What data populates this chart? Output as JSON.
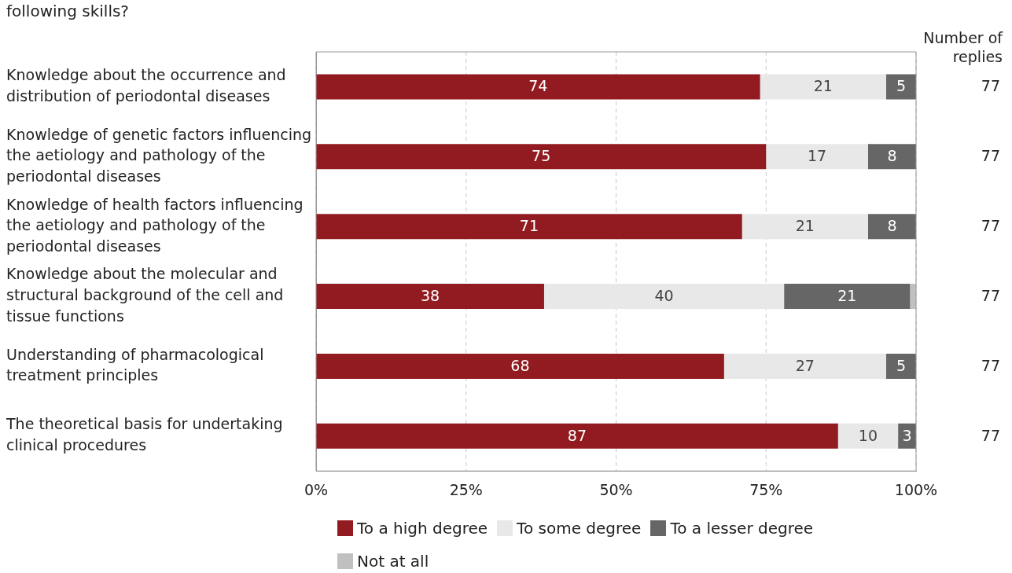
{
  "chart_data": {
    "type": "bar",
    "orientation": "horizontal",
    "stacked": true,
    "title": "following skills?",
    "categories": [
      "Knowledge about the occurrence and distribution of periodontal diseases",
      "Knowledge of genetic factors influencing the aetiology and pathology of the periodontal diseases",
      "Knowledge of health factors influencing the aetiology and pathology of the periodontal diseases",
      "Knowledge about the molecular and structural background of the cell and tissue functions",
      "Understanding of pharmacological treatment principles",
      "The theoretical basis for undertaking clinical procedures"
    ],
    "series": [
      {
        "name": "To a high degree",
        "color": "#921b21",
        "values": [
          74,
          75,
          71,
          38,
          68,
          87
        ],
        "value_labels": [
          "74",
          "75",
          "71",
          "38",
          "68",
          "87"
        ]
      },
      {
        "name": "To some degree",
        "color": "#e8e8e8",
        "values": [
          21,
          17,
          21,
          40,
          27,
          10
        ],
        "value_labels": [
          "21",
          "17",
          "21",
          "40",
          "27",
          "10"
        ]
      },
      {
        "name": "To a lesser degree",
        "color": "#666666",
        "values": [
          5,
          8,
          8,
          21,
          5,
          3
        ],
        "value_labels": [
          "5",
          "8",
          "8",
          "21",
          "5",
          "3"
        ]
      },
      {
        "name": "Not at all",
        "color": "#c0c0c0",
        "values": [
          null,
          null,
          null,
          1,
          null,
          null
        ],
        "value_labels": [
          null,
          null,
          null,
          null,
          null,
          null
        ]
      }
    ],
    "xlim": [
      0,
      100
    ],
    "xticks": [
      {
        "value": 0,
        "label": "0%"
      },
      {
        "value": 25,
        "label": "25%"
      },
      {
        "value": 50,
        "label": "50%"
      },
      {
        "value": 75,
        "label": "75%"
      },
      {
        "value": 100,
        "label": "100%"
      }
    ],
    "grid": "x",
    "legend": "bottom",
    "annotations": [
      "Number of replies",
      "77",
      "77",
      "77",
      "77",
      "77",
      "77"
    ]
  }
}
